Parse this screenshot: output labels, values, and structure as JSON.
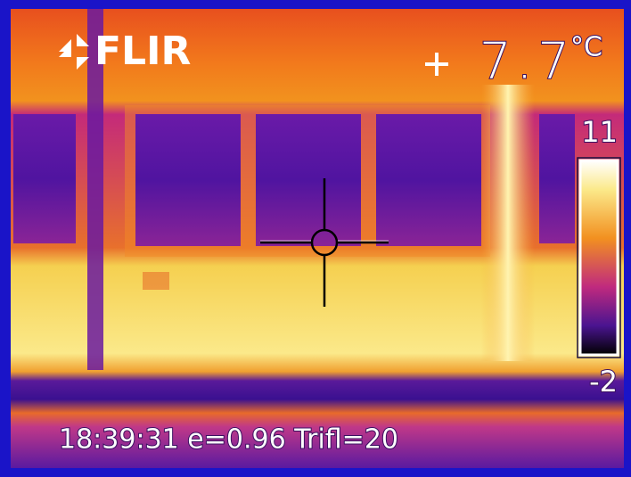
{
  "logo": "FLIR",
  "spot_temperature": {
    "value": "7.7",
    "unit": "°C"
  },
  "scale": {
    "max": "11",
    "min": "-2"
  },
  "status": "18:39:31 e=0.96 Trifl=20"
}
